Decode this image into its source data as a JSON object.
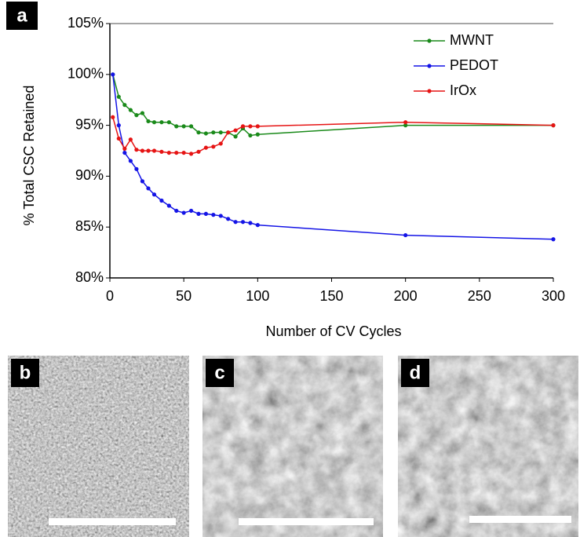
{
  "chart_data": {
    "type": "line",
    "panel_label": "a",
    "x_label": "Number of CV Cycles",
    "y_label": "% Total CSC Retained",
    "x": [
      2,
      6,
      10,
      14,
      18,
      22,
      26,
      30,
      35,
      40,
      45,
      50,
      55,
      60,
      65,
      70,
      75,
      80,
      85,
      90,
      95,
      100,
      200,
      300
    ],
    "series": [
      {
        "name": "MWNT",
        "color": "#1a8a1a",
        "values": [
          100,
          97.8,
          97.0,
          96.5,
          96.0,
          96.2,
          95.4,
          95.3,
          95.3,
          95.3,
          94.9,
          94.9,
          94.9,
          94.3,
          94.2,
          94.3,
          94.3,
          94.3,
          93.9,
          94.7,
          94.0,
          94.1,
          95.0,
          95.0
        ]
      },
      {
        "name": "PEDOT",
        "color": "#1414e6",
        "values": [
          100,
          95.0,
          92.3,
          91.5,
          90.7,
          89.5,
          88.8,
          88.2,
          87.6,
          87.1,
          86.6,
          86.4,
          86.6,
          86.3,
          86.3,
          86.2,
          86.1,
          85.8,
          85.5,
          85.5,
          85.4,
          85.2,
          84.2,
          83.8
        ]
      },
      {
        "name": "IrOx",
        "color": "#e61414",
        "values": [
          95.8,
          93.7,
          92.7,
          93.6,
          92.6,
          92.5,
          92.5,
          92.5,
          92.4,
          92.3,
          92.3,
          92.3,
          92.2,
          92.4,
          92.8,
          92.9,
          93.2,
          94.3,
          94.5,
          94.9,
          94.9,
          94.9,
          95.3,
          95.0
        ]
      }
    ],
    "xlim": [
      0,
      300
    ],
    "xticks": [
      0,
      50,
      100,
      150,
      200,
      250,
      300
    ],
    "ylim": [
      80,
      105
    ],
    "yticks": [
      {
        "value": 80,
        "label": "80%"
      },
      {
        "value": 85,
        "label": "85%"
      },
      {
        "value": 90,
        "label": "90%"
      },
      {
        "value": 95,
        "label": "95%"
      },
      {
        "value": 100,
        "label": "100%"
      },
      {
        "value": 105,
        "label": "105%"
      }
    ],
    "legend": "upper right"
  },
  "images": [
    {
      "label": "b"
    },
    {
      "label": "c"
    },
    {
      "label": "d"
    }
  ]
}
